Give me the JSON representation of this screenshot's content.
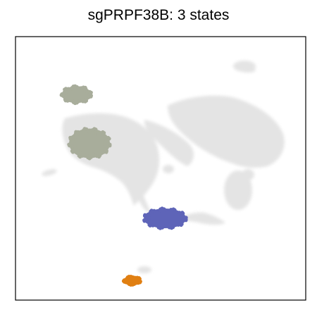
{
  "chart_data": {
    "type": "scatter",
    "title": "sgPRPF38B: 3 states",
    "xlabel": "",
    "ylabel": "",
    "grid": false,
    "legend": "none",
    "background_color": "#e3e3e3",
    "series": [
      {
        "color": "#a8ad9b",
        "points": [
          [
            0.21,
            0.22
          ],
          [
            0.255,
            0.405
          ]
        ]
      },
      {
        "color": "#5e64b8",
        "points": [
          [
            0.515,
            0.69
          ]
        ]
      },
      {
        "color": "#e07f12",
        "points": [
          [
            0.402,
            0.926
          ]
        ]
      }
    ]
  }
}
